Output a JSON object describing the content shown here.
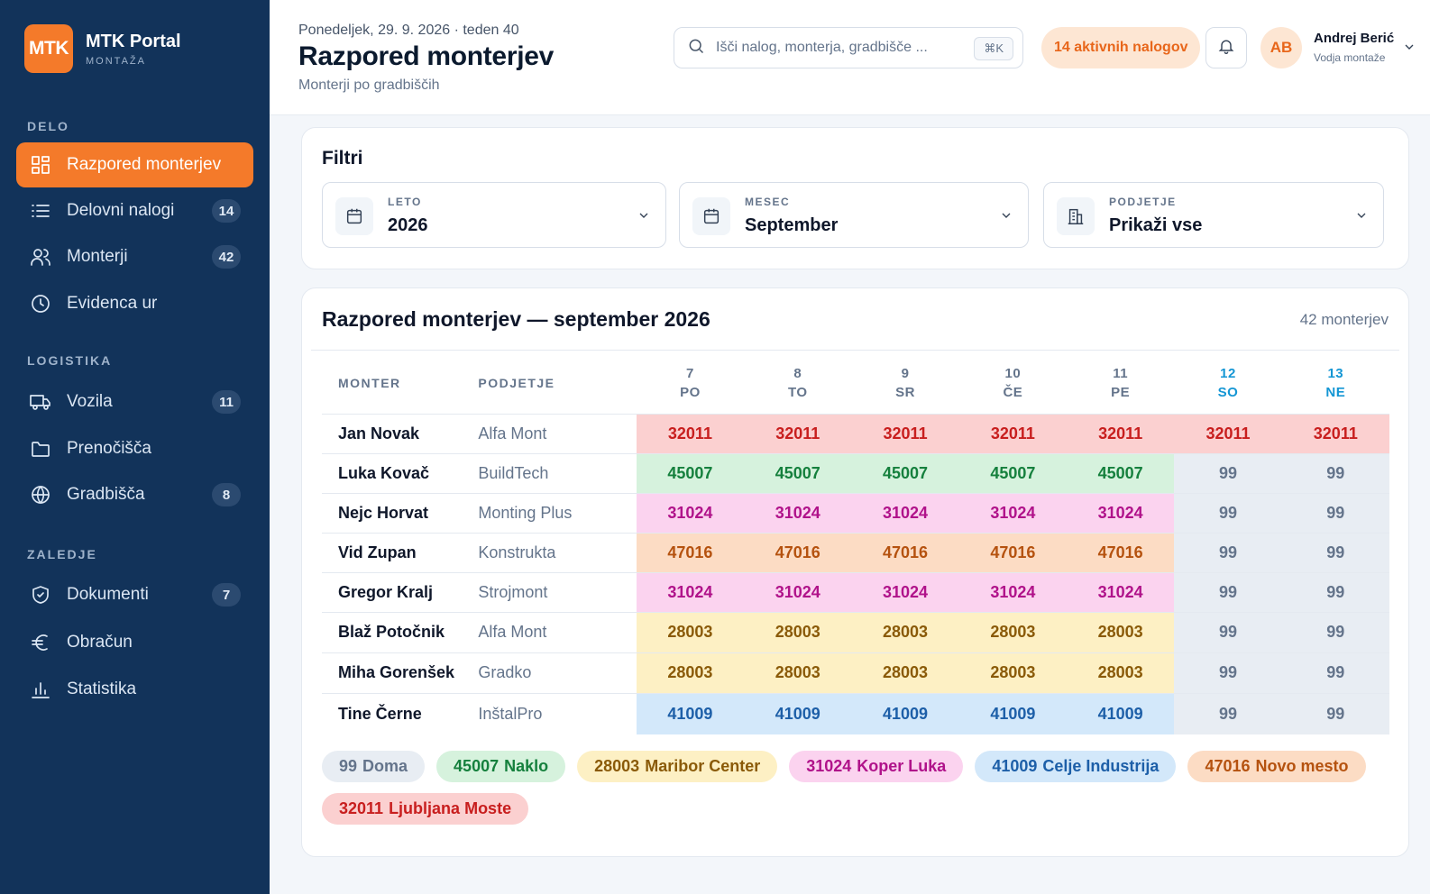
{
  "brand": {
    "logo": "MTK",
    "name": "MTK Portal",
    "sub": "MONTAŽA"
  },
  "nav": {
    "sections": [
      "DELO",
      "LOGISTIKA",
      "ZALEDJE"
    ],
    "items": [
      {
        "label": "Razpored monterjev",
        "icon": "grid-icon",
        "badge": "",
        "active": true
      },
      {
        "label": "Delovni nalogi",
        "icon": "list-icon",
        "badge": "14",
        "active": false
      },
      {
        "label": "Monterji",
        "icon": "users-icon",
        "badge": "42",
        "active": false
      },
      {
        "label": "Evidenca ur",
        "icon": "clock-icon",
        "badge": "",
        "active": false
      },
      {
        "label": "Vozila",
        "icon": "truck-icon",
        "badge": "11",
        "active": false
      },
      {
        "label": "Prenočišča",
        "icon": "folder-icon",
        "badge": "",
        "active": false
      },
      {
        "label": "Gradbišča",
        "icon": "globe-icon",
        "badge": "8",
        "active": false
      },
      {
        "label": "Dokumenti",
        "icon": "shield-icon",
        "badge": "7",
        "active": false
      },
      {
        "label": "Obračun",
        "icon": "euro-icon",
        "badge": "",
        "active": false
      },
      {
        "label": "Statistika",
        "icon": "bar-chart-icon",
        "badge": "",
        "active": false
      }
    ]
  },
  "header": {
    "date": "Ponedeljek, 29. 9. 2026 · teden 40",
    "title": "Razpored monterjev",
    "subtitle": "Monterji po gradbiščih",
    "search_placeholder": "Išči nalog, monterja, gradbišče ...",
    "search_shortcut": "⌘K",
    "active_orders": "14 aktivnih nalogov",
    "user_initials": "AB",
    "user_name": "Andrej Berić",
    "user_role": "Vodja montaže"
  },
  "filters": {
    "title": "Filtri",
    "year": {
      "label": "LETO",
      "value": "2026"
    },
    "month": {
      "label": "MESEC",
      "value": "September"
    },
    "company": {
      "label": "PODJETJE",
      "value": "Prikaži vse"
    }
  },
  "schedule": {
    "title": "Razpored monterjev — september 2026",
    "count": "42 monterjev",
    "col_worker": "MONTER",
    "col_company": "PODJETJE",
    "days": [
      {
        "num": "7",
        "dow": "PO",
        "weekend": false
      },
      {
        "num": "8",
        "dow": "TO",
        "weekend": false
      },
      {
        "num": "9",
        "dow": "SR",
        "weekend": false
      },
      {
        "num": "10",
        "dow": "ČE",
        "weekend": false
      },
      {
        "num": "11",
        "dow": "PE",
        "weekend": false
      },
      {
        "num": "12",
        "dow": "SO",
        "weekend": true
      },
      {
        "num": "13",
        "dow": "NE",
        "weekend": true
      }
    ],
    "rows": [
      {
        "name": "Jan Novak",
        "company": "Alfa Mont",
        "cells": [
          "32011",
          "32011",
          "32011",
          "32011",
          "32011",
          "32011",
          "32011"
        ]
      },
      {
        "name": "Luka Kovač",
        "company": "BuildTech",
        "cells": [
          "45007",
          "45007",
          "45007",
          "45007",
          "45007",
          "99",
          "99"
        ]
      },
      {
        "name": "Nejc Horvat",
        "company": "Monting Plus",
        "cells": [
          "31024",
          "31024",
          "31024",
          "31024",
          "31024",
          "99",
          "99"
        ]
      },
      {
        "name": "Vid Zupan",
        "company": "Konstrukta",
        "cells": [
          "47016",
          "47016",
          "47016",
          "47016",
          "47016",
          "99",
          "99"
        ]
      },
      {
        "name": "Gregor Kralj",
        "company": "Strojmont",
        "cells": [
          "31024",
          "31024",
          "31024",
          "31024",
          "31024",
          "99",
          "99"
        ]
      },
      {
        "name": "Blaž Potočnik",
        "company": "Alfa Mont",
        "cells": [
          "28003",
          "28003",
          "28003",
          "28003",
          "28003",
          "99",
          "99"
        ]
      },
      {
        "name": "Miha Gorenšek",
        "company": "Gradko",
        "cells": [
          "28003",
          "28003",
          "28003",
          "28003",
          "28003",
          "99",
          "99"
        ]
      },
      {
        "name": "Tine Černe",
        "company": "InštalPro",
        "cells": [
          "41009",
          "41009",
          "41009",
          "41009",
          "41009",
          "99",
          "99"
        ]
      }
    ]
  },
  "sites": [
    {
      "code": "99",
      "name": "Doma",
      "bg": "#e8edf3",
      "fg": "#64748b"
    },
    {
      "code": "45007",
      "name": "Naklo",
      "bg": "#d6f2dd",
      "fg": "#15803d"
    },
    {
      "code": "28003",
      "name": "Maribor Center",
      "bg": "#fdf0c4",
      "fg": "#8a5a08"
    },
    {
      "code": "31024",
      "name": "Koper Luka",
      "bg": "#fbd3ef",
      "fg": "#b0128a"
    },
    {
      "code": "41009",
      "name": "Celje Industrija",
      "bg": "#d3e8fa",
      "fg": "#1d5fa8"
    },
    {
      "code": "47016",
      "name": "Novo mesto",
      "bg": "#fcdcc4",
      "fg": "#b5520f"
    },
    {
      "code": "32011",
      "name": "Ljubljana Moste",
      "bg": "#fbd0d0",
      "fg": "#c81e1e"
    }
  ],
  "colors": {
    "accent": "#f47a2a",
    "sidebar": "#12335a",
    "weekend": "#1496d4"
  }
}
